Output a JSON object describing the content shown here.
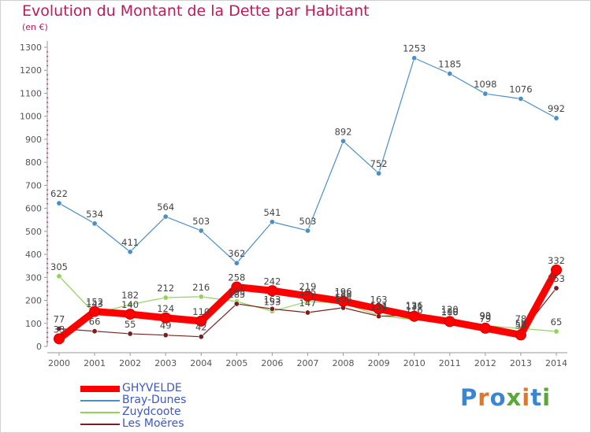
{
  "title": "Evolution du Montant de la Dette par Habitant",
  "subtitle": "(en €)",
  "logo": {
    "text": "Proxiti",
    "colors": [
      "#3a86d6",
      "#e0762a",
      "#3a86d6",
      "#5aa83a",
      "#e0762a",
      "#3a86d6",
      "#5aa83a"
    ]
  },
  "chart_data": {
    "type": "line",
    "title": "Evolution du Montant de la Dette par Habitant",
    "ylabel": "(en €)",
    "x": [
      2000,
      2001,
      2002,
      2003,
      2004,
      2005,
      2006,
      2007,
      2008,
      2009,
      2010,
      2011,
      2012,
      2013,
      2014
    ],
    "ylim": [
      0,
      1300
    ],
    "yticks": [
      0,
      100,
      200,
      300,
      400,
      500,
      600,
      700,
      800,
      900,
      1000,
      1100,
      1200,
      1300
    ],
    "grid": false,
    "legend_position": "bottom-left",
    "series": [
      {
        "name": "GHYVELDE",
        "color": "#ff0000",
        "values": [
          33,
          152,
          140,
          124,
          110,
          258,
          242,
          219,
          196,
          163,
          131,
          108,
          79,
          50,
          332
        ]
      },
      {
        "name": "Bray-Dunes",
        "color": "#4a90c8",
        "values": [
          622,
          534,
          411,
          564,
          503,
          362,
          541,
          503,
          892,
          752,
          1253,
          1185,
          1098,
          1076,
          992
        ]
      },
      {
        "name": "Zuydcoote",
        "color": "#8fd45a",
        "values": [
          305,
          143,
          182,
          212,
          216,
          195,
          153,
          195,
          188,
          134,
          116,
          110,
          90,
          78,
          65
        ]
      },
      {
        "name": "Les Moëres",
        "color": "#7a1f1f",
        "values": [
          77,
          66,
          55,
          49,
          42,
          185,
          163,
          147,
          168,
          131,
          136,
          120,
          93,
          59,
          253
        ]
      }
    ]
  }
}
